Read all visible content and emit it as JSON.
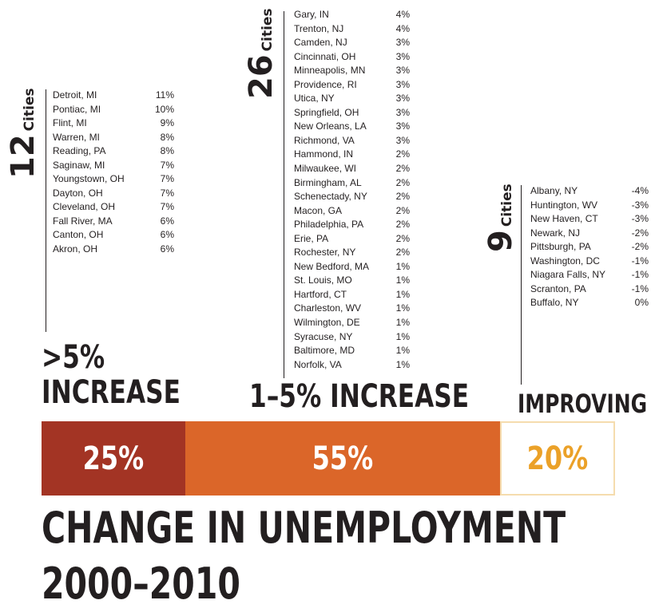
{
  "chart_data": {
    "type": "bar",
    "title": "CHANGE IN UNEMPLOYMENT",
    "subtitle": "2000–2010",
    "categories": [
      ">5% INCREASE",
      "1–5% INCREASE",
      "IMPROVING"
    ],
    "category_lines": [
      [
        ">5%",
        "INCREASE"
      ],
      [
        "1–5% INCREASE"
      ],
      [
        "IMPROVING"
      ]
    ],
    "values": [
      25,
      55,
      20
    ],
    "value_labels": [
      "25%",
      "55%",
      "20%"
    ],
    "colors": [
      "#a33424",
      "#db6629",
      "#ffffff"
    ],
    "value_text_colors": [
      "#ffffff",
      "#ffffff",
      "#eba128"
    ],
    "groups": [
      {
        "count": "12",
        "count_word": "Cities",
        "cities": [
          {
            "name": "Detroit, MI",
            "pct": "11%"
          },
          {
            "name": "Pontiac, MI",
            "pct": "10%"
          },
          {
            "name": "Flint, MI",
            "pct": "9%"
          },
          {
            "name": "Warren, MI",
            "pct": "8%"
          },
          {
            "name": "Reading, PA",
            "pct": "8%"
          },
          {
            "name": "Saginaw, MI",
            "pct": "7%"
          },
          {
            "name": "Youngstown, OH",
            "pct": "7%"
          },
          {
            "name": "Dayton, OH",
            "pct": "7%"
          },
          {
            "name": "Cleveland, OH",
            "pct": "7%"
          },
          {
            "name": "Fall River, MA",
            "pct": "6%"
          },
          {
            "name": "Canton, OH",
            "pct": "6%"
          },
          {
            "name": "Akron, OH",
            "pct": "6%"
          }
        ]
      },
      {
        "count": "26",
        "count_word": "Cities",
        "cities": [
          {
            "name": "Gary, IN",
            "pct": "4%"
          },
          {
            "name": "Trenton, NJ",
            "pct": "4%"
          },
          {
            "name": "Camden, NJ",
            "pct": "3%"
          },
          {
            "name": "Cincinnati, OH",
            "pct": "3%"
          },
          {
            "name": "Minneapolis, MN",
            "pct": "3%"
          },
          {
            "name": "Providence, RI",
            "pct": "3%"
          },
          {
            "name": "Utica,  NY",
            "pct": "3%"
          },
          {
            "name": "Springfield, OH",
            "pct": "3%"
          },
          {
            "name": "New Orleans, LA",
            "pct": "3%"
          },
          {
            "name": "Richmond, VA",
            "pct": "3%"
          },
          {
            "name": "Hammond, IN",
            "pct": "2%"
          },
          {
            "name": "Milwaukee, WI",
            "pct": "2%"
          },
          {
            "name": "Birmingham, AL",
            "pct": "2%"
          },
          {
            "name": "Schenectady, NY",
            "pct": "2%"
          },
          {
            "name": "Macon, GA",
            "pct": "2%"
          },
          {
            "name": "Philadelphia, PA",
            "pct": "2%"
          },
          {
            "name": "Erie, PA",
            "pct": "2%"
          },
          {
            "name": "Rochester, NY",
            "pct": "2%"
          },
          {
            "name": "New Bedford, MA",
            "pct": "1%"
          },
          {
            "name": "St. Louis, MO",
            "pct": "1%"
          },
          {
            "name": "Hartford, CT",
            "pct": "1%"
          },
          {
            "name": "Charleston, WV",
            "pct": "1%"
          },
          {
            "name": "Wilmington, DE",
            "pct": "1%"
          },
          {
            "name": "Syracuse, NY",
            "pct": "1%"
          },
          {
            "name": "Baltimore, MD",
            "pct": "1%"
          },
          {
            "name": "Norfolk, VA",
            "pct": "1%"
          }
        ]
      },
      {
        "count": "9",
        "count_word": "Cities",
        "cities": [
          {
            "name": "Albany, NY",
            "pct": "-4%"
          },
          {
            "name": "Huntington, WV",
            "pct": "-3%"
          },
          {
            "name": "New Haven, CT",
            "pct": "-3%"
          },
          {
            "name": "Newark, NJ",
            "pct": "-2%"
          },
          {
            "name": "Pittsburgh, PA",
            "pct": "-2%"
          },
          {
            "name": "Washington, DC",
            "pct": "-1%"
          },
          {
            "name": "Niagara Falls, NY",
            "pct": "-1%"
          },
          {
            "name": "Scranton, PA",
            "pct": "-1%"
          },
          {
            "name": "Buffalo, NY",
            "pct": "0%"
          }
        ]
      }
    ]
  }
}
